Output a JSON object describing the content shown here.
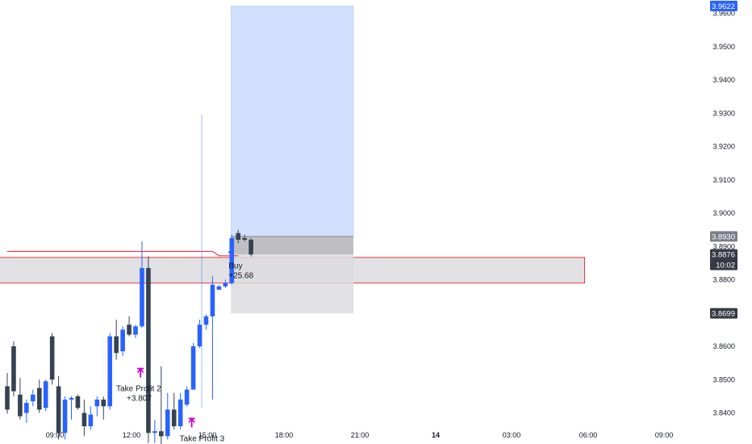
{
  "colors": {
    "bull": "#2962ff",
    "bear": "#364152",
    "profit_zone": "#d1e0ff",
    "loss_zone": "#dcdcde",
    "level_line": "#f23645",
    "highlight_zone": "#e1e1e3",
    "signal": "#c800c8",
    "current_price_tag": "#363a45",
    "entry_tag": "#7b7f8a",
    "top_price_tag": "#2962ff",
    "low_price_tag": "#363a45"
  },
  "chart_data": {
    "type": "candlestick",
    "x_axis_labels": [
      "09:00",
      "12:00",
      "15:00",
      "18:00",
      "21:00",
      "14",
      "03:00",
      "06:00",
      "09:00"
    ],
    "y_axis_ticks": [
      "3.9600",
      "3.9500",
      "3.9400",
      "3.9300",
      "3.9200",
      "3.9100",
      "3.9000",
      "3.8900",
      "3.8800",
      "3.8600",
      "3.8500",
      "3.8400"
    ],
    "price_tags": {
      "top": "3.9622",
      "entry": "3.8930",
      "current": "3.8876",
      "countdown": "10:02",
      "low": "3.8699"
    },
    "candles": [
      {
        "o": 3.848,
        "h": 3.852,
        "l": 3.8398,
        "c": 3.841
      },
      {
        "o": 3.86,
        "h": 3.8615,
        "l": 3.845,
        "c": 3.8465
      },
      {
        "o": 3.8455,
        "h": 3.8505,
        "l": 3.838,
        "c": 3.839
      },
      {
        "o": 3.84,
        "h": 3.844,
        "l": 3.837,
        "c": 3.843
      },
      {
        "o": 3.8435,
        "h": 3.847,
        "l": 3.842,
        "c": 3.8455
      },
      {
        "o": 3.8475,
        "h": 3.85,
        "l": 3.84,
        "c": 3.841
      },
      {
        "o": 3.8415,
        "h": 3.85,
        "l": 3.8405,
        "c": 3.8495
      },
      {
        "o": 3.863,
        "h": 3.864,
        "l": 3.8485,
        "c": 3.85
      },
      {
        "o": 3.848,
        "h": 3.851,
        "l": 3.832,
        "c": 3.834
      },
      {
        "o": 3.834,
        "h": 3.845,
        "l": 3.832,
        "c": 3.844
      },
      {
        "o": 3.844,
        "h": 3.845,
        "l": 3.838,
        "c": 3.8445
      },
      {
        "o": 3.845,
        "h": 3.8455,
        "l": 3.841,
        "c": 3.8415
      },
      {
        "o": 3.84,
        "h": 3.844,
        "l": 3.833,
        "c": 3.836
      },
      {
        "o": 3.836,
        "h": 3.842,
        "l": 3.835,
        "c": 3.8395
      },
      {
        "o": 3.842,
        "h": 3.845,
        "l": 3.839,
        "c": 3.844
      },
      {
        "o": 3.844,
        "h": 3.845,
        "l": 3.838,
        "c": 3.842
      },
      {
        "o": 3.842,
        "h": 3.864,
        "l": 3.841,
        "c": 3.863
      },
      {
        "o": 3.863,
        "h": 3.868,
        "l": 3.856,
        "c": 3.858
      },
      {
        "o": 3.8585,
        "h": 3.866,
        "l": 3.857,
        "c": 3.865
      },
      {
        "o": 3.8665,
        "h": 3.869,
        "l": 3.863,
        "c": 3.8635
      },
      {
        "o": 3.8635,
        "h": 3.8665,
        "l": 3.8625,
        "c": 3.866
      },
      {
        "o": 3.866,
        "h": 3.8915,
        "l": 3.8655,
        "c": 3.8835
      },
      {
        "o": 3.8835,
        "h": 3.887,
        "l": 3.831,
        "c": 3.834
      },
      {
        "o": 3.834,
        "h": 3.838,
        "l": 3.831,
        "c": 3.8345
      },
      {
        "o": 3.8345,
        "h": 3.854,
        "l": 3.83,
        "c": 3.833
      },
      {
        "o": 3.833,
        "h": 3.846,
        "l": 3.832,
        "c": 3.841
      },
      {
        "o": 3.841,
        "h": 3.846,
        "l": 3.835,
        "c": 3.836
      },
      {
        "o": 3.836,
        "h": 3.846,
        "l": 3.835,
        "c": 3.844
      },
      {
        "o": 3.8425,
        "h": 3.848,
        "l": 3.842,
        "c": 3.847
      },
      {
        "o": 3.847,
        "h": 3.861,
        "l": 3.847,
        "c": 3.86
      },
      {
        "o": 3.86,
        "h": 3.868,
        "l": 3.8595,
        "c": 3.8665
      },
      {
        "o": 3.8665,
        "h": 3.8695,
        "l": 3.865,
        "c": 3.869
      },
      {
        "o": 3.869,
        "h": 3.881,
        "l": 3.844,
        "c": 3.8785
      },
      {
        "o": 3.877,
        "h": 3.8785,
        "l": 3.877,
        "c": 3.878
      },
      {
        "o": 3.878,
        "h": 3.88,
        "l": 3.8775,
        "c": 3.879
      },
      {
        "o": 3.879,
        "h": 3.8935,
        "l": 3.8785,
        "c": 3.8925
      },
      {
        "o": 3.894,
        "h": 3.895,
        "l": 3.891,
        "c": 3.892
      },
      {
        "o": 3.8925,
        "h": 3.8935,
        "l": 3.8915,
        "c": 3.892
      },
      {
        "o": 3.892,
        "h": 3.8925,
        "l": 3.887,
        "c": 3.8876
      }
    ],
    "level_line": [
      {
        "bar": 0,
        "price": 3.8885
      },
      {
        "bar": 32,
        "price": 3.8885
      },
      {
        "bar": 33,
        "price": 3.8872
      },
      {
        "bar": 36,
        "price": 3.8872
      }
    ],
    "highlight_zone": {
      "from_bar": 0,
      "to_bar": 90,
      "top": 3.8867,
      "bottom": 3.879
    },
    "position": {
      "from_bar": 35,
      "to_bar": 56,
      "target": 3.9622,
      "entry": 3.893,
      "stop": 3.8699,
      "current": 3.8876
    },
    "annotations": [
      {
        "bar": 19,
        "price": 3.8475,
        "label": "Take Profit 2",
        "value": "+3.807",
        "marker": "down"
      },
      {
        "bar": 27,
        "price": 3.8325,
        "label": "Take Profit 3",
        "value": "",
        "marker": "down"
      },
      {
        "bar": 35,
        "price": 3.8815,
        "label": "Buy",
        "value": "+25.68",
        "marker": "up"
      }
    ]
  }
}
